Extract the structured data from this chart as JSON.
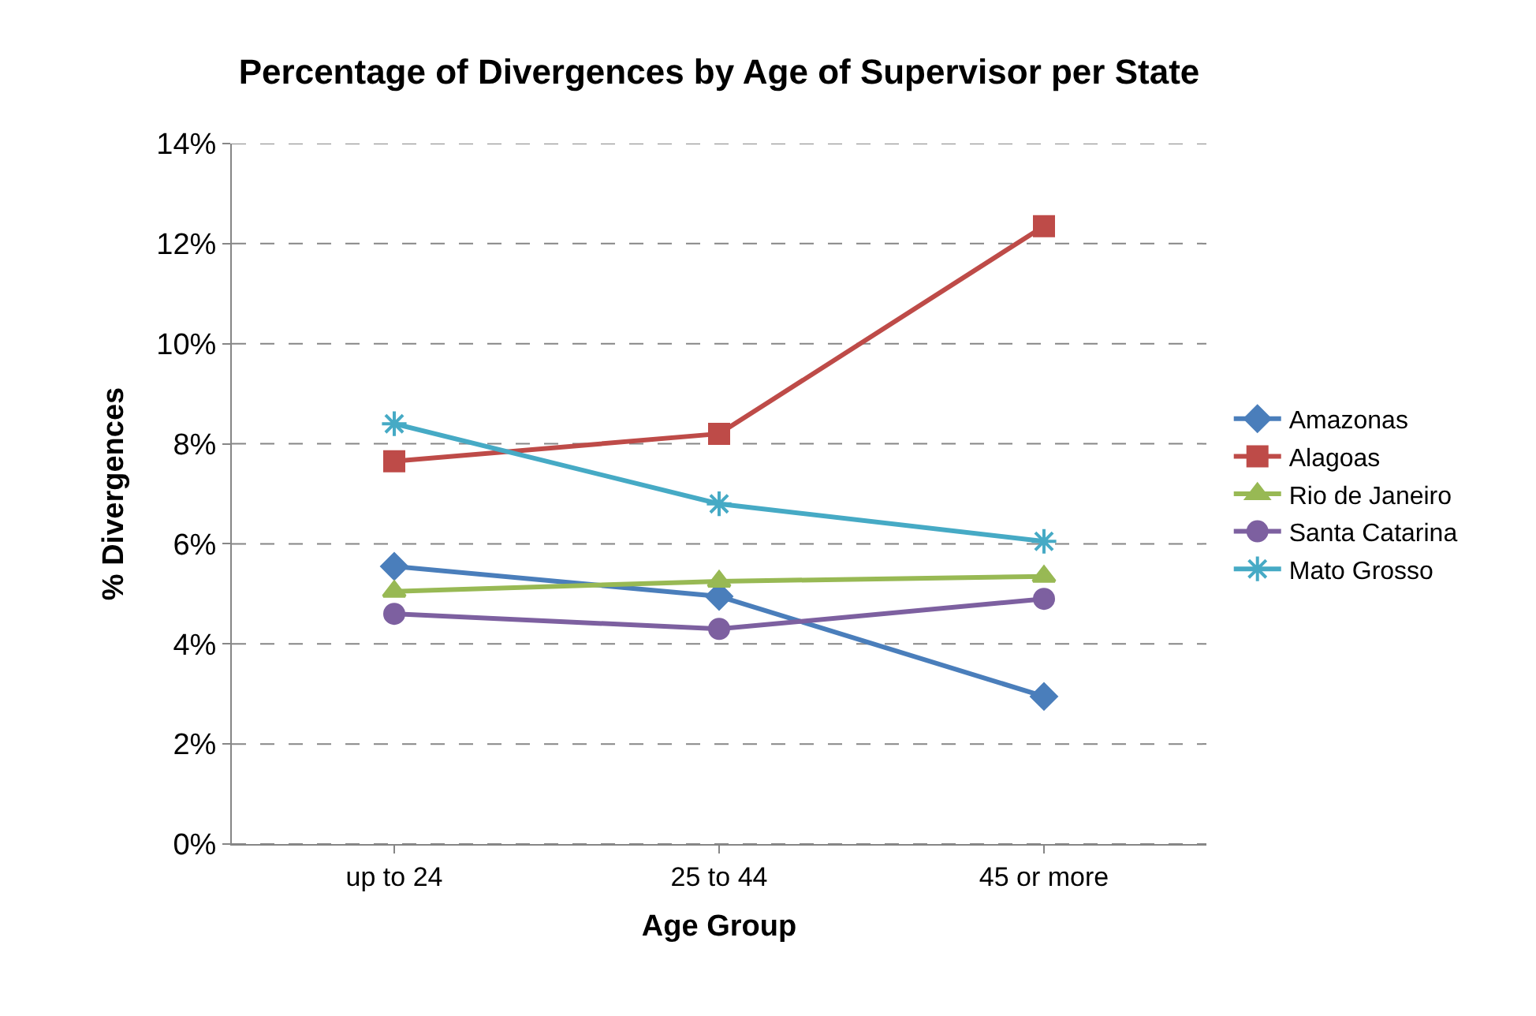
{
  "chart_data": {
    "type": "line",
    "title": "Percentage of Divergences by Age of Supervisor per State",
    "xlabel": "Age Group",
    "ylabel": "% Divergences",
    "categories": [
      "up to 24",
      "25 to 44",
      "45 or more"
    ],
    "series": [
      {
        "name": "Amazonas",
        "color": "#4a7ebb",
        "marker": "diamond",
        "values": [
          5.55,
          4.95,
          2.95
        ]
      },
      {
        "name": "Alagoas",
        "color": "#be4b48",
        "marker": "square",
        "values": [
          7.65,
          8.2,
          12.35
        ]
      },
      {
        "name": "Rio de Janeiro",
        "color": "#98b954",
        "marker": "triangle",
        "values": [
          5.05,
          5.25,
          5.35
        ]
      },
      {
        "name": "Santa Catarina",
        "color": "#7d60a0",
        "marker": "circle",
        "values": [
          4.6,
          4.3,
          4.9
        ]
      },
      {
        "name": "Mato Grosso",
        "color": "#46aac5",
        "marker": "cross",
        "values": [
          8.4,
          6.8,
          6.05
        ]
      }
    ],
    "ylim": [
      0,
      14
    ],
    "yticks": [
      {
        "value": 0,
        "label": "0%"
      },
      {
        "value": 2,
        "label": "2%"
      },
      {
        "value": 4,
        "label": "4%"
      },
      {
        "value": 6,
        "label": "6%"
      },
      {
        "value": 8,
        "label": "8%"
      },
      {
        "value": 10,
        "label": "10%"
      },
      {
        "value": 12,
        "label": "12%"
      },
      {
        "value": 14,
        "label": "14%"
      }
    ],
    "grid": "y",
    "legend": "right",
    "line_style": "solid"
  }
}
